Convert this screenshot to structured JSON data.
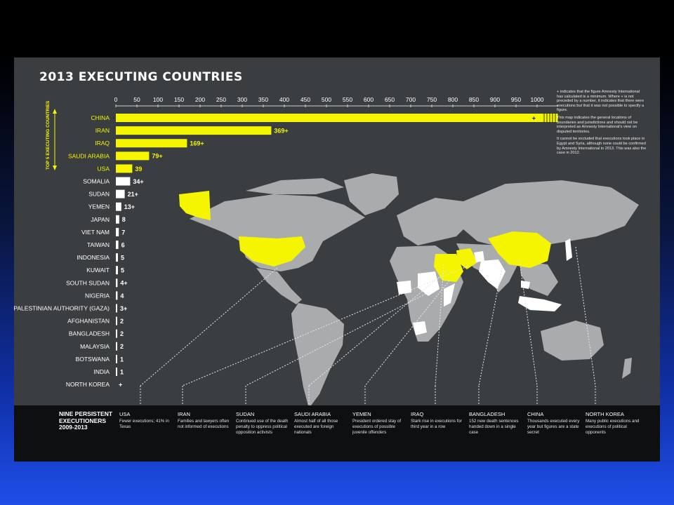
{
  "page": {
    "title": "2013 EXECUTING COUNTRIES",
    "top5_label": "TOP 5 EXECUTING COUNTRIES",
    "notes": [
      "+ indicates that the figure Amnesty International has calculated is a minimum. Where + is not preceded by a number, it indicates that there were executions but that it was not possible to specify a figure.",
      "This map indicates the general locations of boundaries and jurisdictions and should not be interpreted as Amnesty International's view on disputed territories.",
      "It cannot be excluded that executions took place in Egypt and Syria, although none could be confirmed by Amnesty International in 2013. This was also the case in 2012."
    ],
    "colors": {
      "highlight": "#f5f500",
      "bar_other": "#ffffff",
      "panel": "#3b3e41",
      "land": "#a9abad",
      "footer": "#0e0f10"
    }
  },
  "chart_data": {
    "type": "bar",
    "orientation": "horizontal",
    "title": "2013 EXECUTING COUNTRIES",
    "xlim": [
      0,
      1000
    ],
    "xticks": [
      0,
      50,
      100,
      150,
      200,
      250,
      300,
      350,
      400,
      450,
      500,
      550,
      600,
      650,
      700,
      750,
      800,
      850,
      900,
      950,
      1000
    ],
    "categories": [
      "CHINA",
      "IRAN",
      "IRAQ",
      "SAUDI ARABIA",
      "USA",
      "SOMALIA",
      "SUDAN",
      "YEMEN",
      "JAPAN",
      "VIET NAM",
      "TAIWAN",
      "INDONESIA",
      "KUWAIT",
      "SOUTH SUDAN",
      "NIGERIA",
      "PALESTINIAN AUTHORITY (GAZA)",
      "AFGHANISTAN",
      "BANGLADESH",
      "MALAYSIA",
      "BOTSWANA",
      "INDIA",
      "NORTH KOREA"
    ],
    "values": [
      1000,
      369,
      169,
      79,
      39,
      34,
      21,
      13,
      8,
      7,
      6,
      5,
      5,
      4,
      4,
      3,
      2,
      2,
      2,
      1,
      1,
      0
    ],
    "labels": [
      "+",
      "369+",
      "169+",
      "79+",
      "39",
      "34+",
      "21+",
      "13+",
      "8",
      "7",
      "6",
      "5",
      "5",
      "4+",
      "4",
      "3+",
      "2",
      "2",
      "2",
      "1",
      "1",
      "+"
    ],
    "top5_count": 5
  },
  "map": {
    "highlighted_regions": [
      "usa-alaska",
      "usa",
      "china",
      "iran",
      "iraq",
      "saudi-arabia",
      "yemen"
    ],
    "white_regions": [
      "sudan",
      "south-sudan",
      "somalia",
      "nigeria",
      "botswana",
      "india",
      "bangladesh",
      "afghanistan",
      "malaysia",
      "indonesia",
      "japan",
      "viet-nam",
      "taiwan",
      "north-korea",
      "kuwait"
    ]
  },
  "footer": {
    "title": "NINE PERSISTENT EXECUTIONERS 2009-2013",
    "items": [
      {
        "name": "USA",
        "desc": "Fewer executions; 41% in Texas"
      },
      {
        "name": "IRAN",
        "desc": "Families and lawyers often not informed of executions"
      },
      {
        "name": "SUDAN",
        "desc": "Continued use of the death penalty to oppress political opposition activists"
      },
      {
        "name": "SAUDI ARABIA",
        "desc": "Almost half of all those executed are foreign nationals"
      },
      {
        "name": "YEMEN",
        "desc": "President ordered stay of executions of possible juvenile offenders"
      },
      {
        "name": "IRAQ",
        "desc": "Stark rise in executions for third year in a row"
      },
      {
        "name": "BANGLADESH",
        "desc": "152 new death sentences handed down in a single case"
      },
      {
        "name": "CHINA",
        "desc": "Thousands executed every year but figures are a state secret"
      },
      {
        "name": "NORTH KOREA",
        "desc": "Many public executions and executions of political opponents"
      }
    ]
  }
}
